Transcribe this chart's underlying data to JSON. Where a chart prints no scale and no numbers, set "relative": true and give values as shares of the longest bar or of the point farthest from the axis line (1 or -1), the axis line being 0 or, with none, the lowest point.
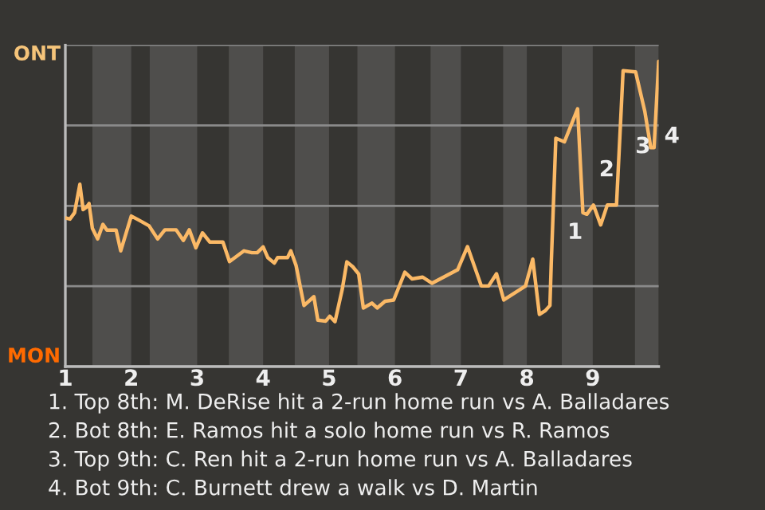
{
  "chart_data": {
    "type": "line",
    "relative": true,
    "xlim": [
      1,
      10
    ],
    "xticks": [
      1,
      2,
      3,
      4,
      5,
      6,
      7,
      8,
      9
    ],
    "grid": "y",
    "series": [
      {
        "color": "#fbb966",
        "x": [
          1.0,
          1.07,
          1.14,
          1.22,
          1.27,
          1.32,
          1.36,
          1.41,
          1.49,
          1.57,
          1.63,
          1.77,
          1.84,
          2.0,
          2.13,
          2.27,
          2.4,
          2.51,
          2.68,
          2.79,
          2.88,
          2.98,
          3.08,
          3.19,
          3.39,
          3.49,
          3.71,
          3.83,
          3.91,
          4.0,
          4.07,
          4.17,
          4.22,
          4.37,
          4.42,
          4.5,
          4.62,
          4.77,
          4.83,
          4.95,
          5.01,
          5.09,
          5.2,
          5.27,
          5.36,
          5.45,
          5.52,
          5.65,
          5.73,
          5.85,
          5.98,
          6.15,
          6.26,
          6.42,
          6.56,
          6.95,
          7.1,
          7.31,
          7.42,
          7.54,
          7.65,
          7.98,
          8.09,
          8.19,
          8.28,
          8.35,
          8.37,
          8.44,
          8.57,
          8.77,
          8.85,
          8.91,
          9.01,
          9.12,
          9.22,
          9.36,
          9.46,
          9.65,
          9.79,
          9.88,
          9.93,
          10.0
        ],
        "values": [
          0.487,
          0.483,
          0.504,
          0.597,
          0.514,
          0.522,
          0.534,
          0.453,
          0.418,
          0.466,
          0.447,
          0.447,
          0.379,
          0.493,
          0.478,
          0.461,
          0.418,
          0.448,
          0.448,
          0.413,
          0.448,
          0.389,
          0.438,
          0.408,
          0.408,
          0.344,
          0.379,
          0.373,
          0.373,
          0.392,
          0.357,
          0.339,
          0.357,
          0.357,
          0.379,
          0.331,
          0.2,
          0.229,
          0.152,
          0.149,
          0.165,
          0.147,
          0.253,
          0.343,
          0.327,
          0.303,
          0.192,
          0.208,
          0.192,
          0.214,
          0.218,
          0.309,
          0.287,
          0.293,
          0.273,
          0.317,
          0.393,
          0.264,
          0.264,
          0.304,
          0.218,
          0.264,
          0.352,
          0.171,
          0.183,
          0.2,
          0.336,
          0.748,
          0.736,
          0.844,
          0.504,
          0.499,
          0.529,
          0.464,
          0.529,
          0.529,
          0.969,
          0.965,
          0.835,
          0.717,
          0.717,
          1
        ]
      }
    ],
    "bands": [
      {
        "axis": "x",
        "from": 1.41,
        "to": 2,
        "color": "#4f4e4c"
      },
      {
        "axis": "x",
        "from": 2.28,
        "to": 3,
        "color": "#4f4e4c"
      },
      {
        "axis": "x",
        "from": 3.48,
        "to": 4,
        "color": "#4f4e4c"
      },
      {
        "axis": "x",
        "from": 4.48,
        "to": 5,
        "color": "#4f4e4c"
      },
      {
        "axis": "x",
        "from": 5.43,
        "to": 6,
        "color": "#4f4e4c"
      },
      {
        "axis": "x",
        "from": 6.54,
        "to": 7,
        "color": "#4f4e4c"
      },
      {
        "axis": "x",
        "from": 7.64,
        "to": 8,
        "color": "#4f4e4c"
      },
      {
        "axis": "x",
        "from": 8.53,
        "to": 9,
        "color": "#4f4e4c"
      },
      {
        "axis": "x",
        "from": 9.64,
        "to": 10,
        "color": "#4f4e4c"
      }
    ],
    "annotations": [
      "ONT",
      "MON",
      {
        "text": "1",
        "x": 8.53,
        "y": 0.438
      },
      {
        "text": "2",
        "x": 9.01,
        "y": 0.643
      },
      {
        "text": "3",
        "x": 9.56,
        "y": 0.719
      },
      {
        "text": "4",
        "x": 10.0,
        "y": 0.753
      },
      "1. Top 8th: M. DeRise hit a 2-run home run vs A. Balladares",
      "2. Bot 8th: E. Ramos hit a solo home run vs R. Ramos",
      "3. Top 9th: C. Ren hit a 2-run home run vs A. Balladares",
      "4. Bot 9th: C. Burnett drew a walk vs D. Martin"
    ]
  }
}
